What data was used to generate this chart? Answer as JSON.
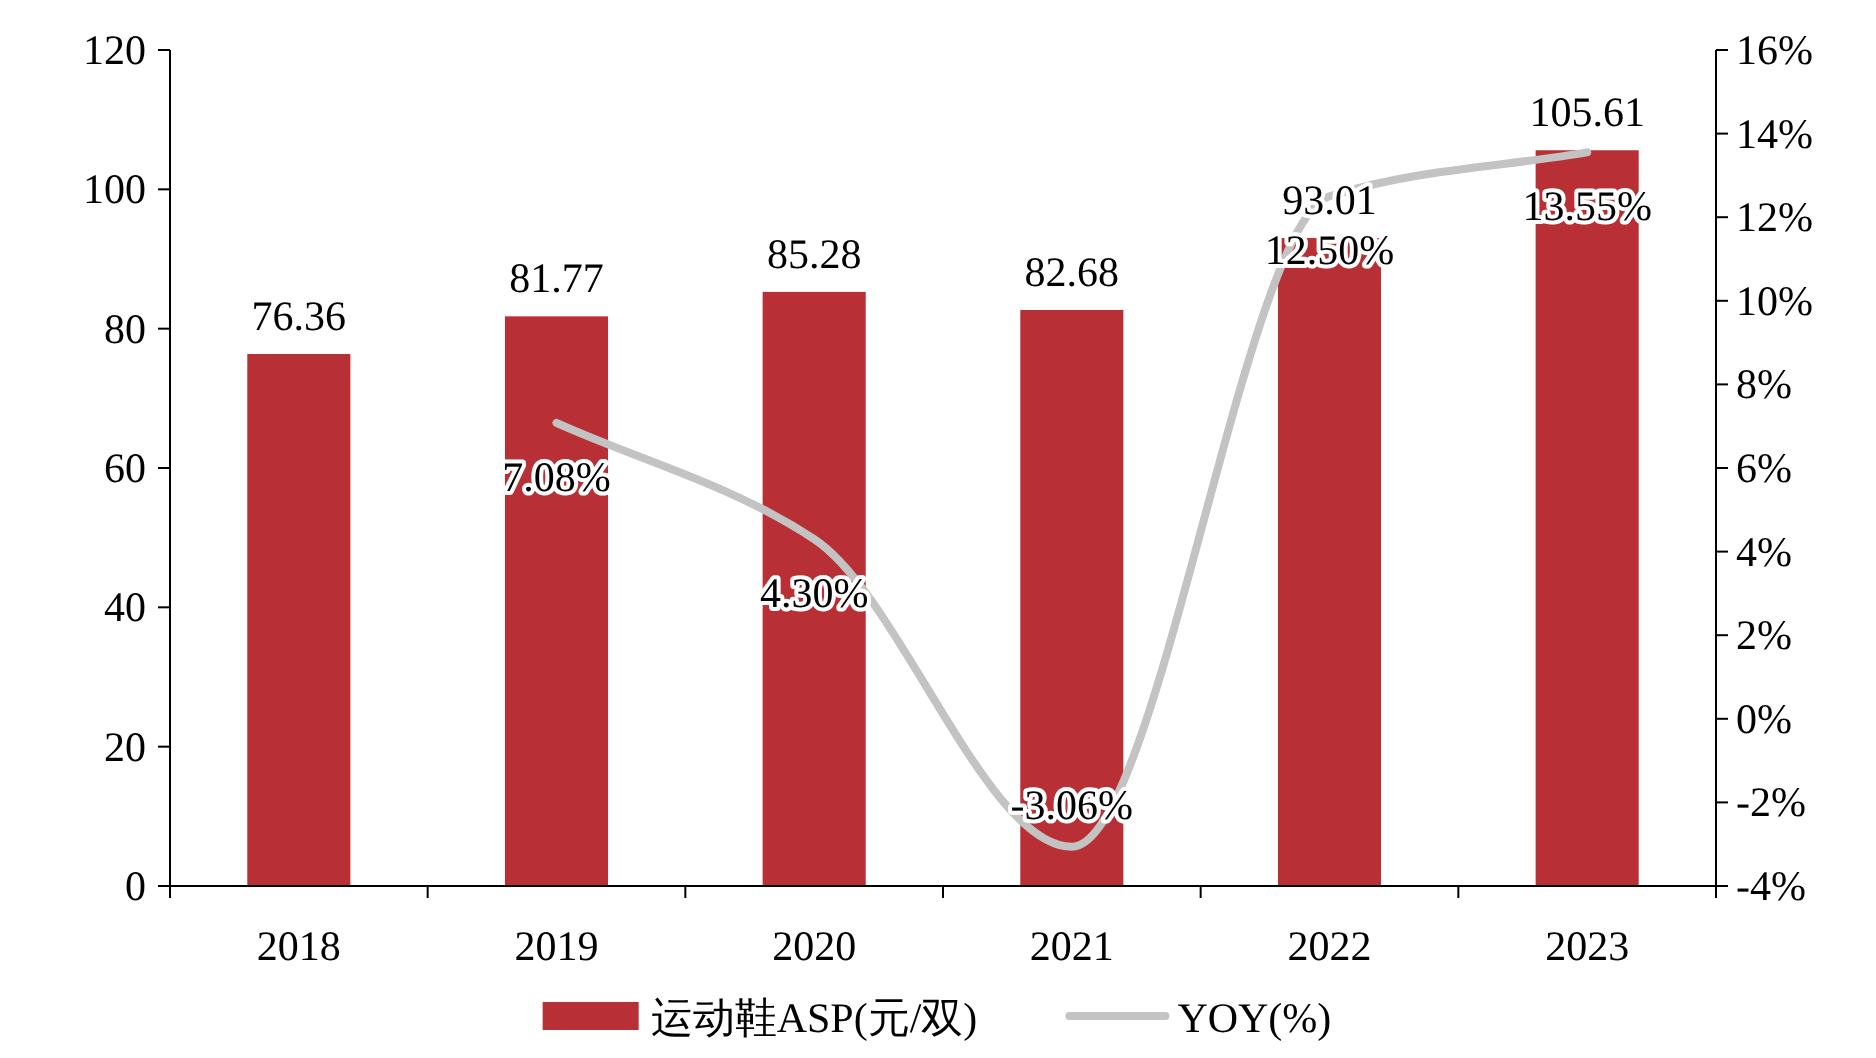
{
  "chart_data": {
    "type": "bar",
    "categories": [
      "2018",
      "2019",
      "2020",
      "2021",
      "2022",
      "2023"
    ],
    "series": [
      {
        "name": "运动鞋ASP(元/双)",
        "color": "#b83035",
        "values": [
          76.36,
          81.77,
          85.28,
          82.68,
          93.01,
          105.61
        ]
      },
      {
        "name": "YOY(%)",
        "type": "line",
        "axis": "y2",
        "color": "#c3c3c3",
        "values": [
          null,
          7.08,
          4.3,
          -3.06,
          12.5,
          13.55
        ],
        "value_labels": [
          null,
          "7.08%",
          "4.30%",
          "-3.06%",
          "12.50%",
          "13.55%"
        ]
      }
    ],
    "ylim": [
      0,
      120
    ],
    "yticks": [
      0,
      20,
      40,
      60,
      80,
      100,
      120
    ],
    "y2lim": [
      -4,
      16
    ],
    "y2ticks": [
      {
        "value": -4,
        "label": "-4%"
      },
      {
        "value": -2,
        "label": "-2%"
      },
      {
        "value": 0,
        "label": "0%"
      },
      {
        "value": 2,
        "label": "2%"
      },
      {
        "value": 4,
        "label": "4%"
      },
      {
        "value": 6,
        "label": "6%"
      },
      {
        "value": 8,
        "label": "8%"
      },
      {
        "value": 10,
        "label": "10%"
      },
      {
        "value": 12,
        "label": "12%"
      },
      {
        "value": 14,
        "label": "14%"
      },
      {
        "value": 16,
        "label": "16%"
      }
    ],
    "data_labels": true,
    "legend": "bottom",
    "grid": false,
    "marker": "none"
  }
}
